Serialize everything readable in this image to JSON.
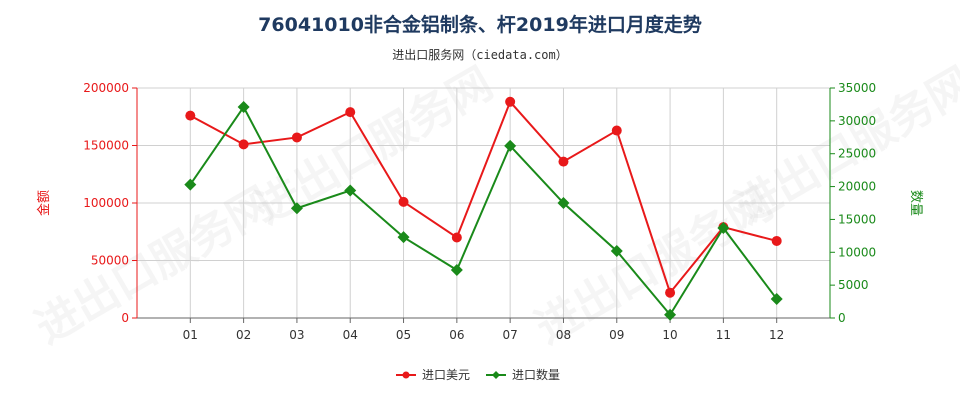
{
  "title": "76041010非合金铝制条、杆2019年进口月度走势",
  "subtitle": "进出口服务网（ciedata.com）",
  "watermark": "进出口服务网",
  "chart_data": {
    "type": "line",
    "categories": [
      "01",
      "02",
      "03",
      "04",
      "05",
      "06",
      "07",
      "08",
      "09",
      "10",
      "11",
      "12"
    ],
    "series": [
      {
        "name": "进口美元",
        "axis": "left",
        "color": "#e8191a",
        "values": [
          176000,
          151000,
          157000,
          179000,
          101000,
          70000,
          188000,
          136000,
          163000,
          22000,
          79000,
          67000
        ]
      },
      {
        "name": "进口数量",
        "axis": "right",
        "color": "#1a8a1a",
        "values": [
          20300,
          32100,
          16700,
          19400,
          12300,
          7300,
          26200,
          17500,
          10200,
          500,
          13700,
          2900
        ]
      }
    ],
    "y_left": {
      "label": "金额",
      "min": 0,
      "max": 200000,
      "ticks": [
        "0",
        "50000",
        "100000",
        "150000",
        "200000"
      ],
      "tick_values": [
        0,
        50000,
        100000,
        150000,
        200000
      ],
      "color": "#e8191a"
    },
    "y_right": {
      "label": "数量",
      "min": 0,
      "max": 35000,
      "ticks": [
        "0",
        "5000",
        "10000",
        "15000",
        "20000",
        "25000",
        "30000",
        "35000"
      ],
      "tick_values": [
        0,
        5000,
        10000,
        15000,
        20000,
        25000,
        30000,
        35000
      ],
      "color": "#1a8a1a"
    },
    "grid": true,
    "legend": {
      "placement": "bottom-center",
      "items": [
        "进口美元",
        "进口数量"
      ]
    }
  }
}
